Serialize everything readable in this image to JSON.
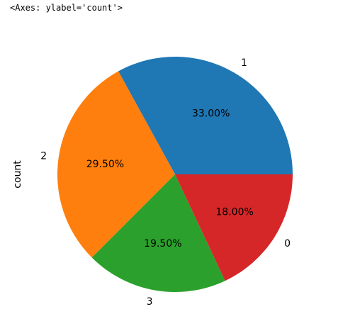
{
  "header_text": "<Axes: ylabel='count'>",
  "chart_data": {
    "type": "pie",
    "ylabel": "count",
    "categories": [
      "1",
      "2",
      "3",
      "0"
    ],
    "values": [
      33,
      29.5,
      19.5,
      18
    ],
    "value_labels": [
      "33.00%",
      "29.50%",
      "19.50%",
      "18.00%"
    ],
    "colors": [
      "#1f77b4",
      "#ff7f0e",
      "#2ca02c",
      "#d62728"
    ]
  }
}
